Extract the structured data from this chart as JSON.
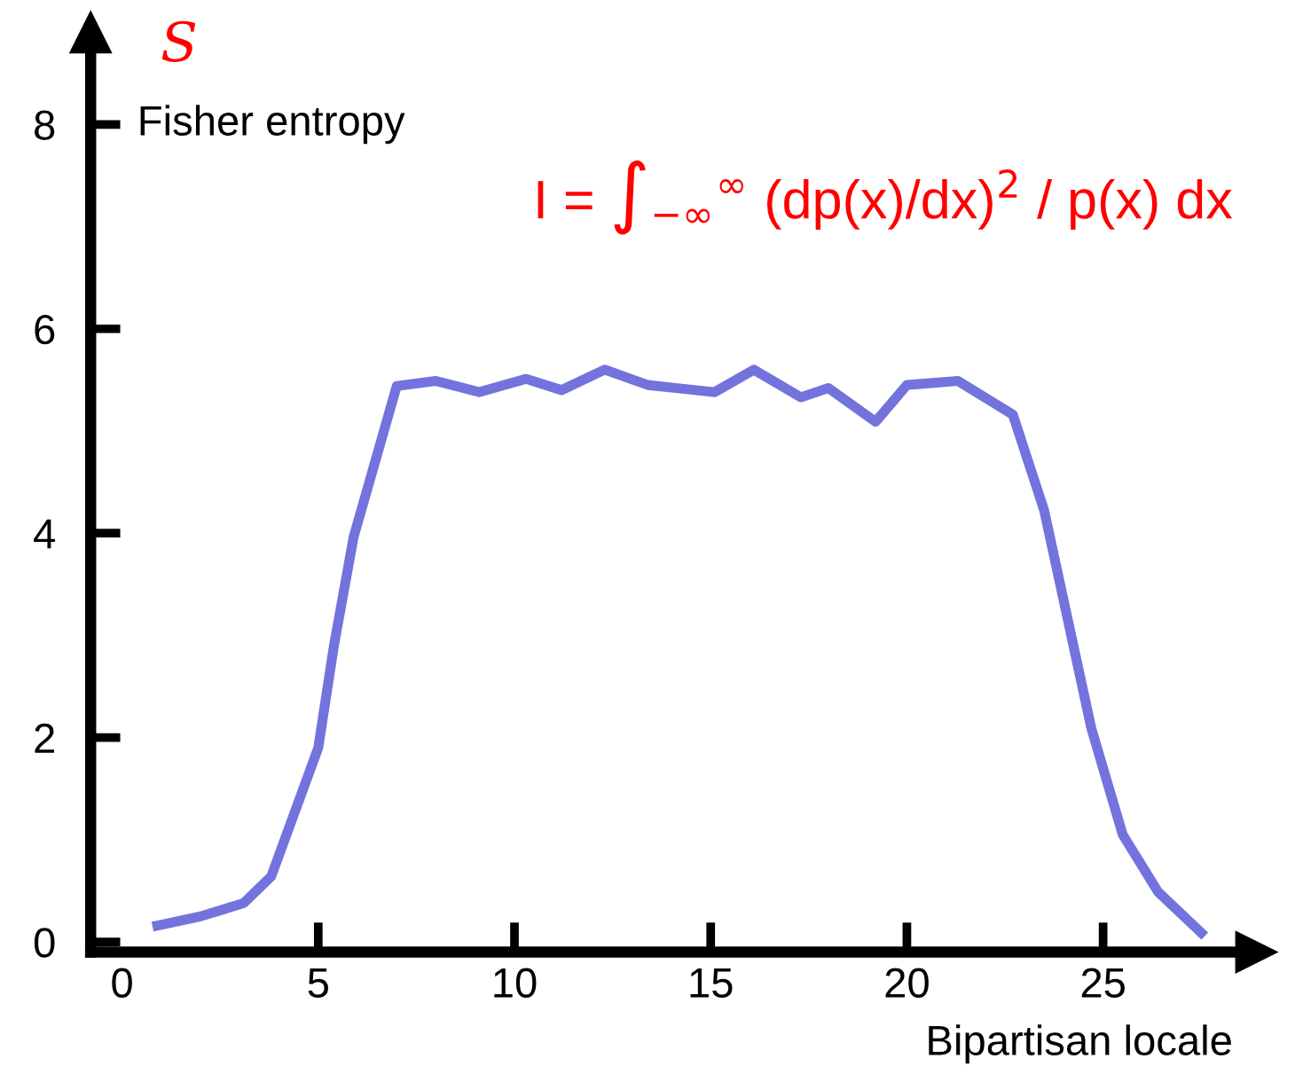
{
  "chart_data": {
    "type": "line",
    "ylabel": "S",
    "xlabel": "Bipartisan locale",
    "annotations": [
      "Fisher entropy",
      "I = ∫$_{−∞}$$^{∞}$ (dp(x)/dx)$^{2}$ / p(x) dx"
    ],
    "x": [
      0.9,
      2.0,
      3.1,
      3.8,
      5.0,
      5.4,
      5.9,
      7.0,
      8.0,
      9.1,
      10.3,
      11.2,
      12.3,
      13.4,
      15.1,
      16.1,
      17.3,
      18.0,
      19.2,
      20.0,
      21.3,
      22.7,
      23.5,
      24.7,
      25.5,
      26.4,
      27.5
    ],
    "series": [
      {
        "color": "#7373dd",
        "values": [
          0.16,
          0.25,
          0.38,
          0.64,
          1.9,
          2.9,
          3.96,
          5.44,
          5.49,
          5.38,
          5.51,
          5.4,
          5.6,
          5.45,
          5.38,
          5.6,
          5.33,
          5.42,
          5.09,
          5.45,
          5.49,
          5.16,
          4.22,
          2.09,
          1.05,
          0.49,
          0.09
        ]
      }
    ],
    "xlim": [
      -0.8,
      28.9
    ],
    "ylim": [
      -0.1,
      8.9
    ],
    "xticks": [
      0,
      5,
      10,
      15,
      20,
      25
    ],
    "yticks": [
      0,
      2,
      4,
      6,
      8
    ],
    "grid": false,
    "legend": false,
    "marker": "none",
    "line_style": "solid"
  }
}
